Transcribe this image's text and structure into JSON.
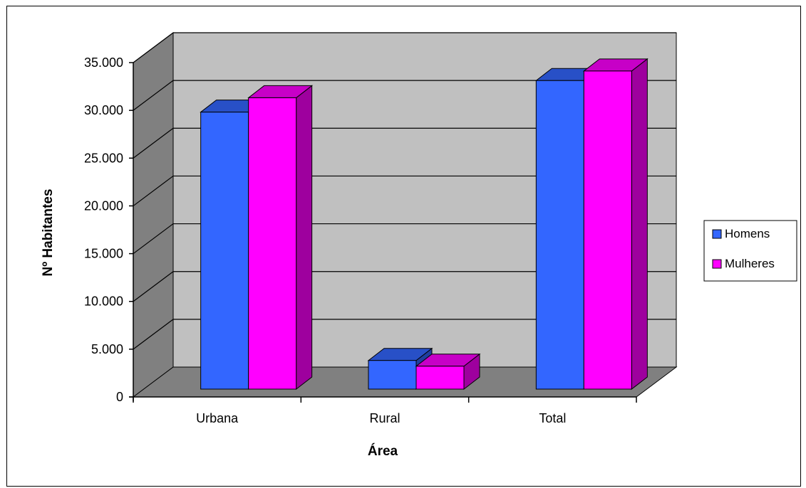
{
  "chart_data": {
    "type": "bar",
    "style": "3d-clustered-column",
    "categories": [
      "Urbana",
      "Rural",
      "Total"
    ],
    "series": [
      {
        "name": "Homens",
        "values": [
          29000,
          3000,
          32300
        ],
        "color": "#3366FF"
      },
      {
        "name": "Mulheres",
        "values": [
          30500,
          2400,
          33300
        ],
        "color": "#FF00FF"
      }
    ],
    "xlabel": "Área",
    "ylabel": "Nº Habitantes",
    "ylim": [
      0,
      35000
    ],
    "yticks": [
      0,
      5000,
      10000,
      15000,
      20000,
      25000,
      30000,
      35000
    ],
    "ytick_labels": [
      "0",
      "5.000",
      "10.000",
      "15.000",
      "20.000",
      "25.000",
      "30.000",
      "35.000"
    ],
    "grid": true,
    "legend_position": "right",
    "colors": {
      "back_wall": "#C0C0C0",
      "side_wall": "#808080",
      "floor": "#808080"
    }
  }
}
